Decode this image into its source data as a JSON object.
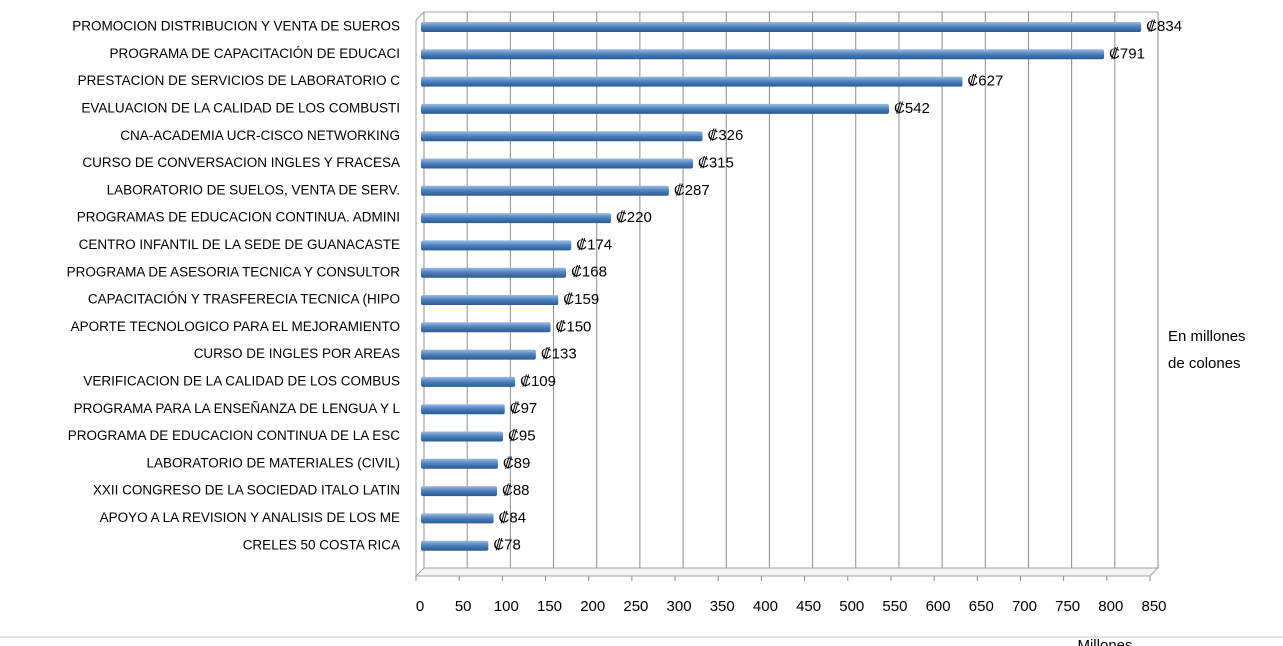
{
  "chart_data": {
    "type": "bar",
    "orientation": "horizontal",
    "categories": [
      "PROMOCION DISTRIBUCION Y VENTA DE SUEROS",
      "PROGRAMA DE CAPACITACIÓN DE EDUCACI",
      "PRESTACION DE SERVICIOS DE LABORATORIO C",
      "EVALUACION DE LA CALIDAD DE LOS COMBUSTI",
      "CNA-ACADEMIA UCR-CISCO NETWORKING",
      "CURSO DE CONVERSACION INGLES Y FRACESA",
      "LABORATORIO DE SUELOS, VENTA DE SERV.",
      "PROGRAMAS DE EDUCACION CONTINUA.  ADMINI",
      "CENTRO INFANTIL DE LA SEDE DE GUANACASTE",
      "PROGRAMA DE ASESORIA TECNICA Y CONSULTOR",
      "CAPACITACIÓN Y TRASFERECIA TECNICA (HIPO",
      "APORTE TECNOLOGICO PARA EL MEJORAMIENTO",
      "CURSO DE INGLES POR AREAS",
      "VERIFICACION DE LA CALIDAD DE LOS COMBUS",
      "PROGRAMA PARA LA ENSEÑANZA DE LENGUA Y L",
      "PROGRAMA DE EDUCACION CONTINUA DE LA ESC",
      "LABORATORIO DE MATERIALES (CIVIL)",
      "XXII CONGRESO DE LA SOCIEDAD ITALO LATIN",
      "APOYO A LA REVISION Y ANALISIS DE LOS ME",
      "CRELES 50 COSTA RICA"
    ],
    "values": [
      834,
      791,
      627,
      542,
      326,
      315,
      287,
      220,
      174,
      168,
      159,
      150,
      133,
      109,
      97,
      95,
      89,
      88,
      84,
      78
    ],
    "value_labels": [
      "₡834",
      "₡791",
      "₡627",
      "₡542",
      "₡326",
      "₡315",
      "₡287",
      "₡220",
      "₡174",
      "₡168",
      "₡159",
      "₡150",
      "₡133",
      "₡109",
      "₡97",
      "₡95",
      "₡89",
      "₡88",
      "₡84",
      "₡78"
    ],
    "color": "#4a7ebb",
    "xlim": [
      0,
      850
    ],
    "xticks": [
      0,
      50,
      100,
      150,
      200,
      250,
      300,
      350,
      400,
      450,
      500,
      550,
      600,
      650,
      700,
      750,
      800,
      850
    ],
    "grid": true,
    "xlabel": "Millones",
    "annotation": [
      "En millones",
      "de colones"
    ]
  }
}
